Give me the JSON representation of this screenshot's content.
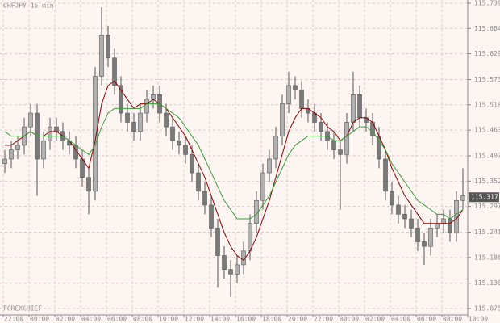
{
  "chart_data": {
    "type": "candlestick",
    "title": "CHFJPY 15 min",
    "watermark": "FOREXCHIEF",
    "open": [
      115.39,
      115.4,
      115.42,
      115.43,
      115.47,
      115.5,
      115.4,
      115.44,
      115.47,
      115.46,
      115.44,
      115.43,
      115.4,
      115.36,
      115.33,
      115.58,
      115.67,
      115.62,
      115.56,
      115.5,
      115.48,
      115.46,
      115.5,
      115.53,
      115.54,
      115.5,
      115.47,
      115.44,
      115.43,
      115.41,
      115.37,
      115.33,
      115.3,
      115.25,
      115.19,
      115.16,
      115.15,
      115.17,
      115.2,
      115.26,
      115.31,
      115.37,
      115.4,
      115.45,
      115.52,
      115.56,
      115.55,
      115.51,
      115.5,
      115.48,
      115.46,
      115.44,
      115.42,
      115.41,
      115.48,
      115.54,
      115.49,
      115.48,
      115.45,
      115.4,
      115.33,
      115.3,
      115.28,
      115.27,
      115.25,
      115.22,
      115.21,
      115.25,
      115.26,
      115.27,
      115.24,
      115.31
    ],
    "high": [
      115.42,
      115.44,
      115.45,
      115.49,
      115.52,
      115.52,
      115.46,
      115.49,
      115.49,
      115.48,
      115.46,
      115.45,
      115.42,
      115.38,
      115.6,
      115.73,
      115.69,
      115.64,
      115.58,
      115.52,
      115.5,
      115.52,
      115.55,
      115.56,
      115.56,
      115.52,
      115.49,
      115.46,
      115.45,
      115.43,
      115.39,
      115.35,
      115.32,
      115.27,
      115.21,
      115.18,
      115.19,
      115.22,
      115.28,
      115.33,
      115.39,
      115.42,
      115.47,
      115.54,
      115.59,
      115.58,
      115.57,
      115.53,
      115.52,
      115.5,
      115.48,
      115.46,
      115.44,
      115.5,
      115.59,
      115.56,
      115.51,
      115.5,
      115.47,
      115.42,
      115.35,
      115.32,
      115.3,
      115.29,
      115.27,
      115.24,
      115.27,
      115.28,
      115.29,
      115.29,
      115.33,
      115.38
    ],
    "low": [
      115.37,
      115.38,
      115.4,
      115.41,
      115.45,
      115.32,
      115.38,
      115.42,
      115.44,
      115.42,
      115.41,
      115.38,
      115.34,
      115.28,
      115.31,
      115.56,
      115.6,
      115.54,
      115.48,
      115.46,
      115.44,
      115.44,
      115.48,
      115.51,
      115.48,
      115.45,
      115.42,
      115.41,
      115.39,
      115.35,
      115.31,
      115.28,
      115.23,
      115.12,
      115.14,
      115.1,
      115.13,
      115.15,
      115.18,
      115.24,
      115.29,
      115.35,
      115.38,
      115.43,
      115.5,
      115.53,
      115.49,
      115.48,
      115.46,
      115.44,
      115.42,
      115.4,
      115.29,
      115.39,
      115.46,
      115.47,
      115.46,
      115.43,
      115.38,
      115.31,
      115.28,
      115.26,
      115.25,
      115.23,
      115.2,
      115.17,
      115.19,
      115.23,
      115.24,
      115.22,
      115.22,
      115.29
    ],
    "close": [
      115.4,
      115.42,
      115.43,
      115.47,
      115.5,
      115.4,
      115.44,
      115.47,
      115.46,
      115.44,
      115.43,
      115.4,
      115.36,
      115.33,
      115.58,
      115.67,
      115.62,
      115.56,
      115.5,
      115.48,
      115.46,
      115.5,
      115.53,
      115.54,
      115.5,
      115.47,
      115.44,
      115.43,
      115.41,
      115.37,
      115.33,
      115.3,
      115.25,
      115.19,
      115.16,
      115.15,
      115.17,
      115.2,
      115.26,
      115.31,
      115.37,
      115.4,
      115.45,
      115.52,
      115.56,
      115.55,
      115.51,
      115.5,
      115.48,
      115.46,
      115.44,
      115.42,
      115.41,
      115.48,
      115.54,
      115.49,
      115.48,
      115.45,
      115.4,
      115.33,
      115.3,
      115.28,
      115.27,
      115.25,
      115.22,
      115.21,
      115.25,
      115.26,
      115.27,
      115.24,
      115.31,
      115.32
    ],
    "color": "#7a7a7a",
    "lines": [
      {
        "color": "#8b0000",
        "values": [
          115.43,
          115.43,
          115.44,
          115.45,
          115.46,
          115.45,
          115.45,
          115.46,
          115.46,
          115.45,
          115.44,
          115.42,
          115.4,
          115.38,
          115.44,
          115.52,
          115.56,
          115.57,
          115.55,
          115.53,
          115.51,
          115.52,
          115.52,
          115.53,
          115.52,
          115.51,
          115.49,
          115.47,
          115.45,
          115.42,
          115.39,
          115.36,
          115.32,
          115.28,
          115.24,
          115.21,
          115.19,
          115.18,
          115.2,
          115.23,
          115.27,
          115.31,
          115.36,
          115.41,
          115.46,
          115.49,
          115.51,
          115.51,
          115.5,
          115.49,
          115.47,
          115.46,
          115.44,
          115.45,
          115.48,
          115.49,
          115.49,
          115.48,
          115.45,
          115.42,
          115.38,
          115.35,
          115.32,
          115.3,
          115.28,
          115.26,
          115.26,
          115.26,
          115.26,
          115.26,
          115.27,
          115.29
        ]
      },
      {
        "color": "#3a9a3a",
        "values": [
          115.46,
          115.45,
          115.45,
          115.45,
          115.46,
          115.45,
          115.45,
          115.45,
          115.45,
          115.45,
          115.44,
          115.43,
          115.42,
          115.41,
          115.43,
          115.47,
          115.5,
          115.51,
          115.51,
          115.51,
          115.51,
          115.51,
          115.52,
          115.52,
          115.52,
          115.51,
          115.5,
          115.49,
          115.47,
          115.45,
          115.43,
          115.4,
          115.37,
          115.34,
          115.31,
          115.29,
          115.27,
          115.27,
          115.27,
          115.28,
          115.3,
          115.32,
          115.35,
          115.38,
          115.41,
          115.43,
          115.44,
          115.45,
          115.45,
          115.45,
          115.45,
          115.44,
          115.44,
          115.45,
          115.46,
          115.47,
          115.47,
          115.46,
          115.44,
          115.42,
          115.39,
          115.37,
          115.35,
          115.33,
          115.31,
          115.3,
          115.29,
          115.28,
          115.28,
          115.27,
          115.28,
          115.29
        ]
      }
    ],
    "last_price": 115.317,
    "xlim": [
      -0.75,
      71.75
    ],
    "ylim": [
      115.061,
      115.746
    ],
    "xticks": [
      {
        "value": 0,
        "label": "22:00"
      },
      {
        "value": 4,
        "label": "00:00"
      },
      {
        "value": 8,
        "label": "02:00"
      },
      {
        "value": 12,
        "label": "04:00"
      },
      {
        "value": 16,
        "label": "06:00"
      },
      {
        "value": 20,
        "label": "08:00"
      },
      {
        "value": 24,
        "label": "10:00"
      },
      {
        "value": 28,
        "label": "12:00"
      },
      {
        "value": 32,
        "label": "14:00"
      },
      {
        "value": 36,
        "label": "16:00"
      },
      {
        "value": 40,
        "label": "18:00"
      },
      {
        "value": 44,
        "label": "20:00"
      },
      {
        "value": 48,
        "label": "22:00"
      },
      {
        "value": 52,
        "label": "00:00"
      },
      {
        "value": 56,
        "label": "02:00"
      },
      {
        "value": 60,
        "label": "04:00"
      },
      {
        "value": 64,
        "label": "06:00"
      },
      {
        "value": 68,
        "label": "08:00"
      },
      {
        "value": 72,
        "label": "10:00"
      }
    ],
    "yticks": [
      115.739,
      115.684,
      115.629,
      115.573,
      115.518,
      115.463,
      115.407,
      115.352,
      115.297,
      115.241,
      115.186,
      {
        "value": 115.13,
        "label": "115.130"
      },
      115.075
    ],
    "grid": true
  }
}
